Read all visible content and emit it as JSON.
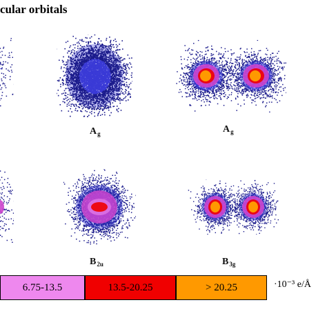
{
  "title": "cular orbitals",
  "colors": {
    "dark_blue": "#1b1b8c",
    "blue": "#3a3ad6",
    "magenta": "#cc44cc",
    "pink": "#ee88ee",
    "red": "#f00000",
    "orange": "#ff9900"
  },
  "orbitals": [
    {
      "label": "A",
      "sub": "g",
      "shape": "sphere"
    },
    {
      "label": "A",
      "sub": "g",
      "shape": "two-lobe"
    },
    {
      "label": "B",
      "sub": "2u",
      "shape": "sphere-core"
    },
    {
      "label": "B",
      "sub": "3g",
      "shape": "two-lobe"
    }
  ],
  "legend": [
    {
      "text": "6.75-13.5",
      "color": "#ee88ee"
    },
    {
      "text": "13.5-20.25",
      "color": "#f00000"
    },
    {
      "text": "> 20.25",
      "color": "#ff9900"
    }
  ],
  "unit": "·10⁻³ e/Å"
}
